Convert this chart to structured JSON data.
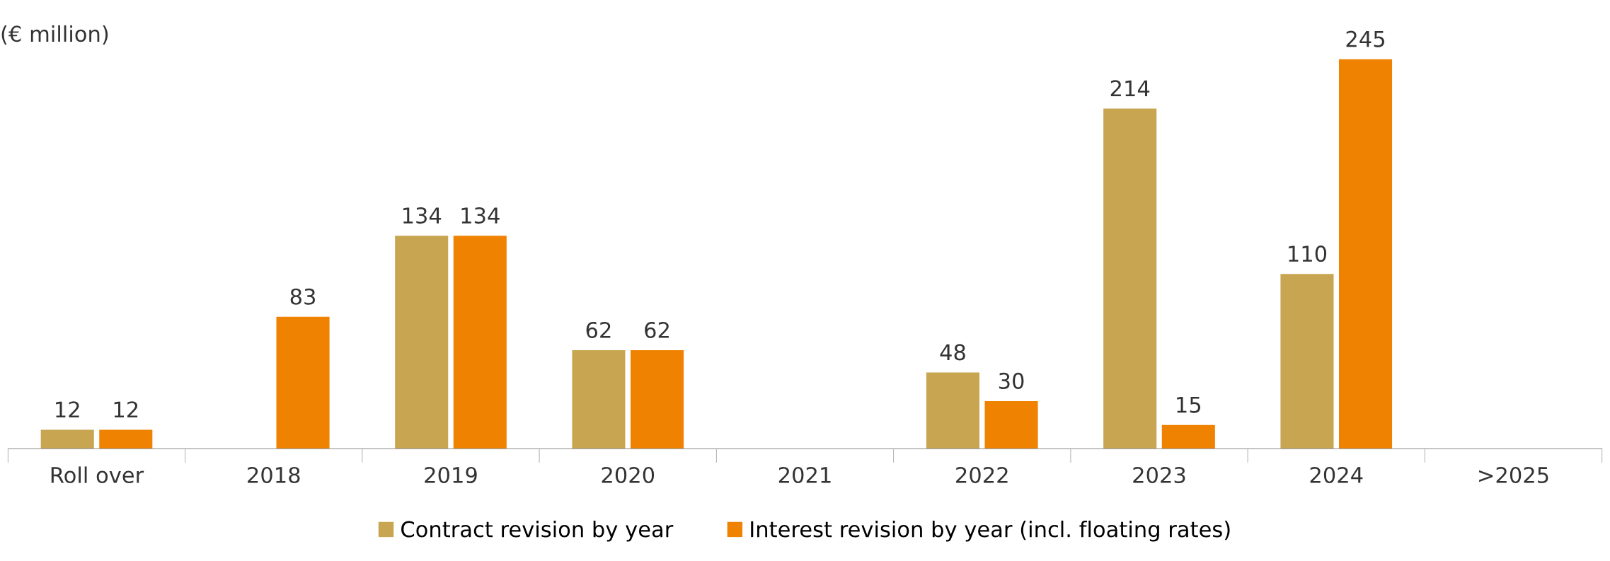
{
  "chart_data": {
    "type": "bar",
    "ylabel": "(€ million)",
    "categories": [
      "Roll over",
      "2018",
      "2019",
      "2020",
      "2021",
      "2022",
      "2023",
      "2024",
      ">2025"
    ],
    "series": [
      {
        "name": "Contract revision by year",
        "color": "#c8a550",
        "values": [
          12,
          null,
          134,
          62,
          null,
          48,
          214,
          110,
          null
        ]
      },
      {
        "name": "Interest revision by year (incl. floating rates)",
        "color": "#ef8200",
        "values": [
          12,
          83,
          134,
          62,
          null,
          30,
          15,
          245,
          null
        ]
      }
    ],
    "data_labels": true,
    "legend": "bottom",
    "grid": false
  }
}
